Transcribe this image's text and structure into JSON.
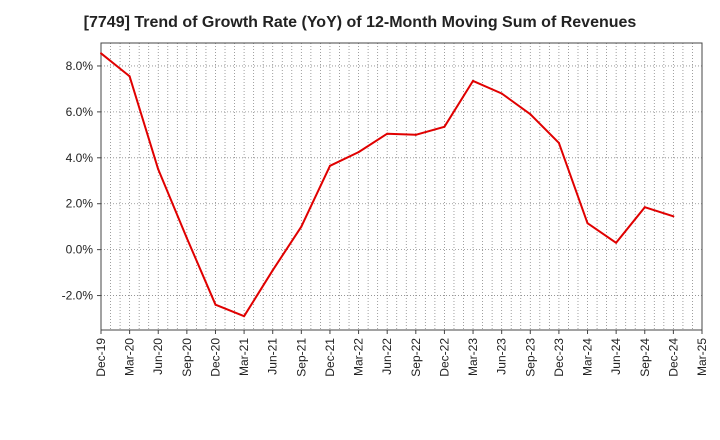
{
  "chart_data": {
    "type": "line",
    "title": "[7749]  Trend of Growth Rate (YoY) of 12-Month Moving Sum of Revenues",
    "xlabel": "",
    "ylabel": "",
    "x_ticks": [
      "Dec-19",
      "Mar-20",
      "Jun-20",
      "Sep-20",
      "Dec-20",
      "Mar-21",
      "Jun-21",
      "Sep-21",
      "Dec-21",
      "Mar-22",
      "Jun-22",
      "Sep-22",
      "Dec-22",
      "Mar-23",
      "Jun-23",
      "Sep-23",
      "Dec-23",
      "Mar-24",
      "Jun-24",
      "Sep-24",
      "Dec-24",
      "Mar-25"
    ],
    "y_ticks": [
      "8.0%",
      "6.0%",
      "4.0%",
      "2.0%",
      "0.0%",
      "-2.0%"
    ],
    "y_tick_values": [
      8,
      6,
      4,
      2,
      0,
      -2
    ],
    "ylim": [
      -3.5,
      9.0
    ],
    "grid": true,
    "series": [
      {
        "color": "#e00000",
        "x": [
          "Dec-19",
          "Mar-20",
          "Jun-20",
          "Sep-20",
          "Dec-20",
          "Mar-21",
          "Jun-21",
          "Sep-21",
          "Dec-21",
          "Mar-22",
          "Jun-22",
          "Sep-22",
          "Dec-22",
          "Mar-23",
          "Jun-23",
          "Sep-23",
          "Dec-23",
          "Mar-24",
          "Jun-24",
          "Sep-24",
          "Dec-24"
        ],
        "values": [
          8.55,
          7.55,
          3.5,
          0.5,
          -2.4,
          -2.9,
          -0.9,
          1.0,
          3.65,
          4.25,
          5.05,
          5.0,
          5.35,
          7.35,
          6.8,
          5.9,
          4.65,
          1.15,
          0.3,
          1.85,
          1.45
        ]
      }
    ]
  }
}
